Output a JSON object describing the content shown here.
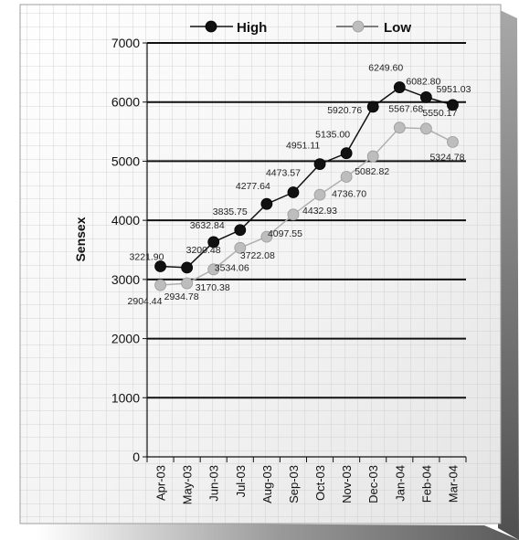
{
  "chart_data": {
    "type": "line",
    "title": "",
    "xlabel": "",
    "ylabel": "Sensex",
    "ylim": [
      0,
      7000
    ],
    "yticks": [
      0,
      1000,
      2000,
      3000,
      4000,
      5000,
      6000,
      7000
    ],
    "grid": true,
    "legend_position": "top",
    "categories": [
      "Apr-03",
      "May-03",
      "Jun-03",
      "Jul-03",
      "Aug-03",
      "Sep-03",
      "Oct-03",
      "Nov-03",
      "Dec-03",
      "Jan-04",
      "Feb-04",
      "Mar-04"
    ],
    "series": [
      {
        "name": "High",
        "color": "#111111",
        "values": [
          3221.9,
          3200.48,
          3632.84,
          3835.75,
          4277.64,
          4473.57,
          4951.11,
          5135.0,
          5920.76,
          6249.6,
          6082.8,
          5951.03
        ],
        "labels": [
          "3221.90",
          "3200.48",
          "3632.84",
          "3835.75",
          "4277.64",
          "4473.57",
          "4951.11",
          "5135.00",
          "5920.76",
          "6249.60",
          "6082.80",
          "5951.03"
        ]
      },
      {
        "name": "Low",
        "color": "#bdbdbd",
        "values": [
          2904.44,
          2934.78,
          3170.38,
          3534.06,
          3722.08,
          4097.55,
          4432.93,
          4736.7,
          5082.82,
          5567.68,
          5550.17,
          5324.78
        ],
        "labels": [
          "2904.44",
          "2934.78",
          "3170.38",
          "3534.06",
          "3722.08",
          "4097.55",
          "4432.93",
          "4736.70",
          "5082.82",
          "5567.68",
          "5550.17",
          "5324.78"
        ]
      }
    ]
  }
}
